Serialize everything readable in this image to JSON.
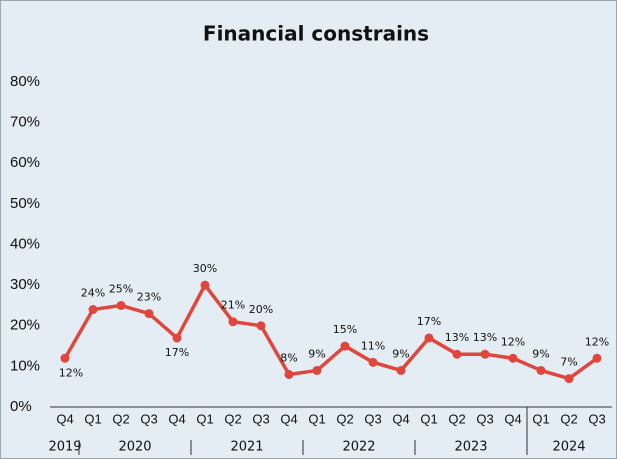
{
  "chart_data": {
    "type": "line",
    "title": "Financial constrains",
    "categories": [
      "Q4",
      "Q1",
      "Q2",
      "Q3",
      "Q4",
      "Q1",
      "Q2",
      "Q3",
      "Q4",
      "Q1",
      "Q2",
      "Q3",
      "Q4",
      "Q1",
      "Q2",
      "Q3",
      "Q4",
      "Q1",
      "Q2",
      "Q3"
    ],
    "year_groups": [
      {
        "label": "2019",
        "count": 1
      },
      {
        "label": "2020",
        "count": 4
      },
      {
        "label": "2021",
        "count": 4
      },
      {
        "label": "2022",
        "count": 4
      },
      {
        "label": "2023",
        "count": 4
      },
      {
        "label": "2024",
        "count": 3
      }
    ],
    "series": [
      {
        "name": "Financial constrains",
        "color": "#e0463c",
        "values": [
          12,
          24,
          25,
          23,
          17,
          30,
          21,
          20,
          8,
          9,
          15,
          11,
          9,
          17,
          13,
          13,
          12,
          9,
          7,
          12
        ],
        "value_labels": [
          "12%",
          "24%",
          "25%",
          "23%",
          "17%",
          "30%",
          "21%",
          "20%",
          "8%",
          "9%",
          "15%",
          "11%",
          "9%",
          "17%",
          "13%",
          "13%",
          "12%",
          "9%",
          "7%",
          "12%"
        ]
      }
    ],
    "ylim": [
      0,
      80
    ],
    "yticks": [
      {
        "value": 0,
        "label": "0%"
      },
      {
        "value": 10,
        "label": "10%"
      },
      {
        "value": 20,
        "label": "20%"
      },
      {
        "value": 30,
        "label": "30%"
      },
      {
        "value": 40,
        "label": "40%"
      },
      {
        "value": 50,
        "label": "50%"
      },
      {
        "value": 60,
        "label": "60%"
      },
      {
        "value": 70,
        "label": "70%"
      },
      {
        "value": 80,
        "label": "80%"
      }
    ],
    "grid": false
  }
}
